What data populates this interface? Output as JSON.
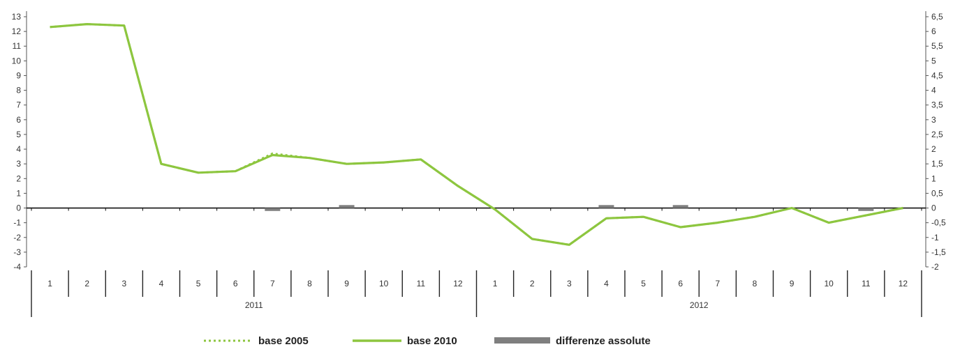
{
  "chart_data": {
    "type": "line",
    "categories": [
      "1",
      "2",
      "3",
      "4",
      "5",
      "6",
      "7",
      "8",
      "9",
      "10",
      "11",
      "12",
      "1",
      "2",
      "3",
      "4",
      "5",
      "6",
      "7",
      "8",
      "9",
      "10",
      "11",
      "12"
    ],
    "years": [
      {
        "label": "2011",
        "months": 12
      },
      {
        "label": "2012",
        "months": 12
      }
    ],
    "series": [
      {
        "name": "base 2005",
        "axis": "left",
        "style": "dotted",
        "color": "#8dc63f",
        "values": [
          12.3,
          12.5,
          12.4,
          3.0,
          2.4,
          2.5,
          3.7,
          3.4,
          3.0,
          3.1,
          3.3,
          1.5,
          -0.1,
          -2.1,
          -2.5,
          -0.7,
          -0.6,
          -1.3,
          -1.0,
          -0.6,
          0.0,
          -1.0,
          -0.5,
          0.0
        ]
      },
      {
        "name": "base 2010",
        "axis": "left",
        "style": "solid",
        "color": "#8dc63f",
        "values": [
          12.3,
          12.5,
          12.4,
          3.0,
          2.4,
          2.5,
          3.6,
          3.4,
          3.0,
          3.1,
          3.3,
          1.5,
          -0.1,
          -2.1,
          -2.5,
          -0.7,
          -0.6,
          -1.3,
          -1.0,
          -0.6,
          0.0,
          -1.0,
          -0.5,
          0.0
        ]
      },
      {
        "name": "differenze assolute",
        "axis": "right",
        "style": "bar",
        "color": "#7f7f7f",
        "values": [
          0,
          0,
          0,
          0,
          0,
          0,
          -0.1,
          0,
          0.1,
          0,
          0,
          0,
          0,
          0,
          0,
          0.1,
          0,
          0.1,
          0,
          0,
          0,
          0,
          -0.1,
          0
        ]
      }
    ],
    "y_left": {
      "min": -4,
      "max": 13,
      "step": 1
    },
    "y_right": {
      "min": -2,
      "max": 6.5,
      "step": 0.5
    },
    "y_left_ticks": [
      "13",
      "12",
      "11",
      "10",
      "9",
      "8",
      "7",
      "6",
      "5",
      "4",
      "3",
      "2",
      "1",
      "0",
      "-1",
      "-2",
      "-3",
      "-4"
    ],
    "y_right_ticks": [
      "6,5",
      "6",
      "5,5",
      "5",
      "4,5",
      "4",
      "3,5",
      "3",
      "2,5",
      "2",
      "1,5",
      "1",
      "0,5",
      "0",
      "-0,5",
      "-1",
      "-1,5",
      "-2"
    ],
    "legend_placement": "bottom-center",
    "legend": [
      {
        "label": "base 2005",
        "style": "dotted",
        "color": "#8dc63f"
      },
      {
        "label": "base 2010",
        "style": "solid",
        "color": "#8dc63f"
      },
      {
        "label": "differenze assolute",
        "style": "bar",
        "color": "#7f7f7f"
      }
    ],
    "grid": false
  }
}
